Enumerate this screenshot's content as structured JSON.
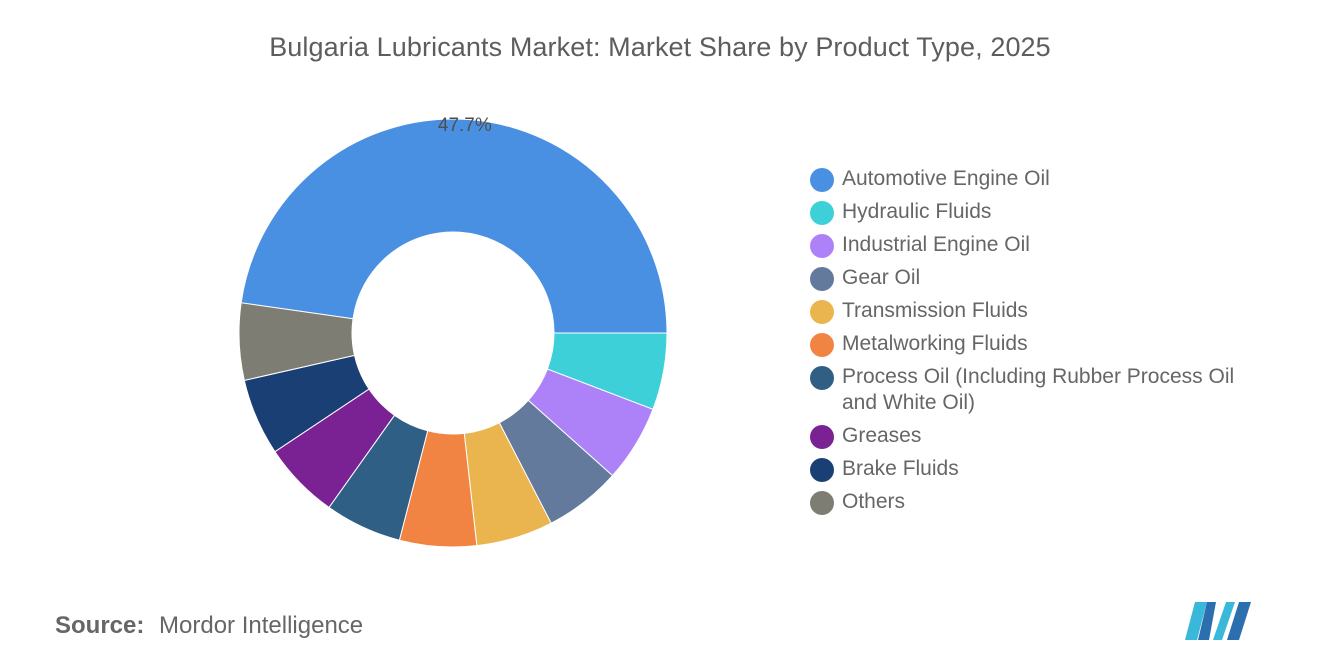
{
  "title": "Bulgaria Lubricants Market: Market Share by Product Type, 2025",
  "source": {
    "label": "Source:",
    "value": "Mordor Intelligence"
  },
  "chart_data": {
    "type": "pie",
    "variant": "donut",
    "title": "Bulgaria Lubricants Market: Market Share by Product Type, 2025",
    "legend_position": "right",
    "categories": [
      "Automotive Engine Oil",
      "Hydraulic Fluids",
      "Industrial Engine Oil",
      "Gear Oil",
      "Transmission Fluids",
      "Metalworking Fluids",
      "Process Oil (Including Rubber Process Oil and White Oil)",
      "Greases",
      "Brake Fluids",
      "Others"
    ],
    "values": [
      47.7,
      5.8,
      5.8,
      5.8,
      5.8,
      5.8,
      5.8,
      5.8,
      5.8,
      5.8
    ],
    "colors": [
      "#4a90e2",
      "#3ed0d8",
      "#ad82f8",
      "#637a9c",
      "#eab54e",
      "#f28443",
      "#2f5f84",
      "#7a2293",
      "#1a3f75",
      "#7d7d74"
    ],
    "data_labels": [
      "47.7%",
      "",
      "",
      "",
      "",
      "",
      "",
      "",
      "",
      ""
    ]
  }
}
